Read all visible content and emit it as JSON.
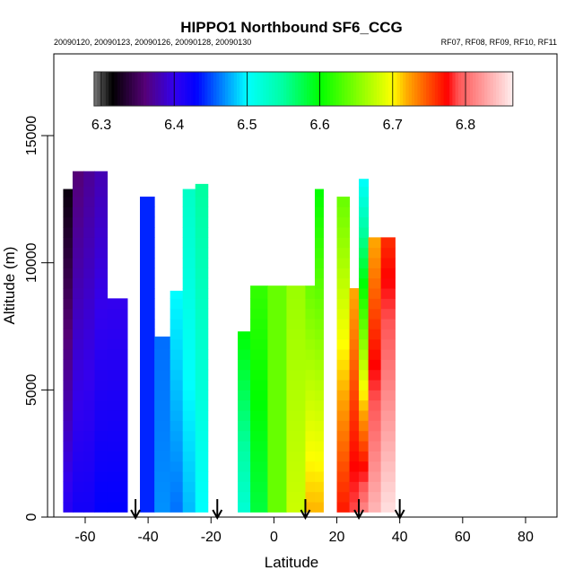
{
  "chart_data": {
    "type": "heatmap",
    "title": "HIPPO1 Northbound SF6_CCG",
    "subtitle_left": "20090120, 20090123, 20090126, 20090128, 20090130",
    "subtitle_right": "RF07, RF08, RF09, RF10, RF11",
    "xlabel": "Latitude",
    "ylabel": "Altitude (m)",
    "xlim": [
      -70,
      90
    ],
    "ylim": [
      0,
      18200
    ],
    "xticks": [
      "-60",
      "-40",
      "-20",
      "0",
      "20",
      "40",
      "60",
      "80"
    ],
    "xtick_values": [
      -60,
      -40,
      -20,
      0,
      20,
      40,
      60,
      80
    ],
    "yticks": [
      "0",
      "5000",
      "10000",
      "15000"
    ],
    "ytick_values": [
      0,
      5000,
      10000,
      15000
    ],
    "colorbar": {
      "range": [
        6.29,
        6.865
      ],
      "ticks": [
        "6.3",
        "6.4",
        "6.5",
        "6.6",
        "6.7",
        "6.8"
      ],
      "tick_values": [
        6.3,
        6.4,
        6.5,
        6.6,
        6.7,
        6.8
      ]
    },
    "arrow_latitudes": [
      -44,
      -18,
      10,
      27,
      40
    ],
    "columns": [
      {
        "lat0": -67,
        "lat1": -64,
        "top": 12900,
        "v_bottom": 6.41,
        "v_top": 6.32
      },
      {
        "lat0": -64,
        "lat1": -60.5,
        "top": 13600,
        "v_bottom": 6.42,
        "v_top": 6.36
      },
      {
        "lat0": -60.5,
        "lat1": -57,
        "top": 13600,
        "v_bottom": 6.42,
        "v_top": 6.37
      },
      {
        "lat0": -57,
        "lat1": -53,
        "top": 13600,
        "v_bottom": 6.43,
        "v_top": 6.38
      },
      {
        "lat0": -53,
        "lat1": -46.6,
        "top": 8600,
        "v_bottom": 6.43,
        "v_top": 6.4
      },
      {
        "lat0": -42.6,
        "lat1": -38,
        "top": 12600,
        "v_bottom": 6.44,
        "v_top": 6.44
      },
      {
        "lat0": -38,
        "lat1": -33,
        "top": 7100,
        "v_bottom": 6.47,
        "v_top": 6.46
      },
      {
        "lat0": -33,
        "lat1": -29,
        "top": 8900,
        "v_bottom": 6.46,
        "v_top": 6.5
      },
      {
        "lat0": -29,
        "lat1": -25,
        "top": 12900,
        "v_bottom": 6.48,
        "v_top": 6.53
      },
      {
        "lat0": -25,
        "lat1": -21,
        "top": 13100,
        "v_bottom": 6.5,
        "v_top": 6.55
      },
      {
        "lat0": -11.5,
        "lat1": -7.5,
        "top": 7300,
        "v_bottom": 6.52,
        "v_top": 6.6
      },
      {
        "lat0": -7.5,
        "lat1": -2,
        "top": 9100,
        "v_bottom": 6.58,
        "v_top": 6.62
      },
      {
        "lat0": -2,
        "lat1": 4,
        "top": 9100,
        "v_bottom": 6.64,
        "v_top": 6.64
      },
      {
        "lat0": 4,
        "lat1": 10,
        "top": 9100,
        "v_bottom": 6.68,
        "v_top": 6.66
      },
      {
        "lat0": 10,
        "lat1": 13,
        "top": 9100,
        "v_bottom": 6.72,
        "v_top": 6.64
      },
      {
        "lat0": 13,
        "lat1": 15.7,
        "top": 12900,
        "v_bottom": 6.72,
        "v_top": 6.6
      },
      {
        "lat0": 20,
        "lat1": 24,
        "top": 12600,
        "v_bottom": 6.77,
        "v_top": 6.64
      },
      {
        "lat0": 24,
        "lat1": 27,
        "top": 9000,
        "v_bottom": 6.79,
        "v_top": 6.72
      },
      {
        "lat0": 27,
        "lat1": 30,
        "top": 13300,
        "v_bottom": 6.82,
        "v_top": 6.5
      },
      {
        "lat0": 30,
        "lat1": 34,
        "top": 11000,
        "v_bottom": 6.84,
        "v_top": 6.72
      },
      {
        "lat0": 34,
        "lat1": 38.5,
        "top": 11000,
        "v_bottom": 6.86,
        "v_top": 6.76
      }
    ]
  }
}
